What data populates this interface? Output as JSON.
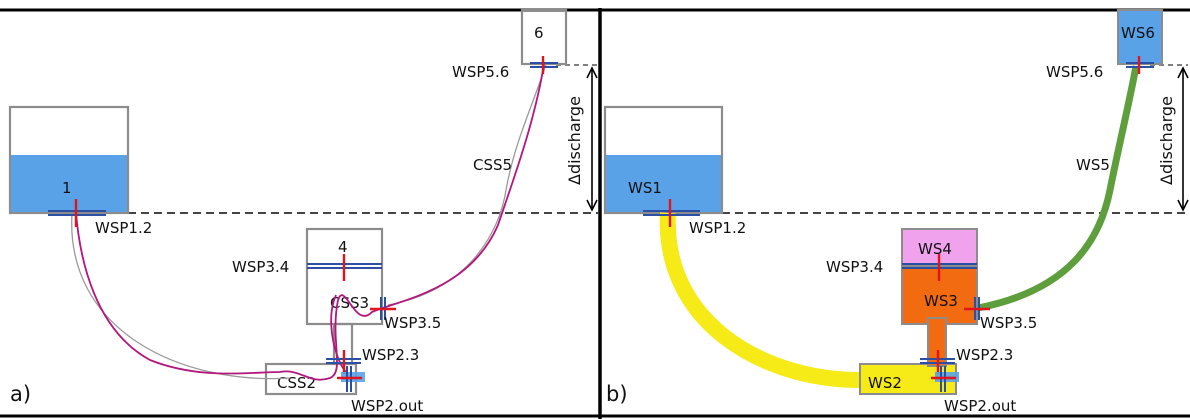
{
  "panels": {
    "a": {
      "label": "a)"
    },
    "b": {
      "label": "b)"
    }
  },
  "labels_a": {
    "tank1": "1",
    "tank4": "4",
    "tank6": "6",
    "wsp12": "WSP1.2",
    "wsp34": "WSP3.4",
    "wsp35": "WSP3.5",
    "wsp23": "WSP2.3",
    "wsp2out": "WSP2.out",
    "wsp56": "WSP5.6",
    "css2": "CSS2",
    "css3": "CSS3",
    "css5": "CSS5",
    "delta": "Δdischarge"
  },
  "labels_b": {
    "ws1": "WS1",
    "ws2": "WS2",
    "ws3": "WS3",
    "ws4": "WS4",
    "ws5": "WS5",
    "ws6": "WS6",
    "wsp12": "WSP1.2",
    "wsp34": "WSP3.4",
    "wsp35": "WSP3.5",
    "wsp23": "WSP2.3",
    "wsp2out": "WSP2.out",
    "wsp56": "WSP5.6",
    "delta": "Δdischarge"
  },
  "colors": {
    "water": "#5aa2e8",
    "ws2": "#f6ea17",
    "ws3": "#f26b10",
    "ws4": "#f0a3ec",
    "ws5": "#5e9e3c",
    "wsp_red": "#e0141e",
    "wsp_blue": "#2a4fa5",
    "css_curve": "#b3177e",
    "box_outline": "#8c8c8c"
  }
}
